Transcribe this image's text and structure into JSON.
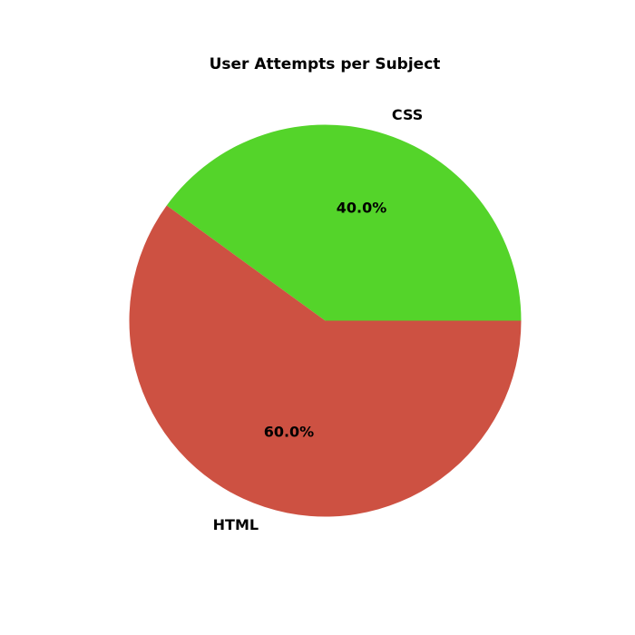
{
  "chart_data": {
    "type": "pie",
    "title": "User Attempts per Subject",
    "slices": [
      {
        "label": "CSS",
        "value": 40.0,
        "pct_label": "40.0%",
        "color": "#54d42a"
      },
      {
        "label": "HTML",
        "value": 60.0,
        "pct_label": "60.0%",
        "color": "#cd5142"
      }
    ],
    "start_angle_deg": 0,
    "direction": "counterclockwise"
  }
}
